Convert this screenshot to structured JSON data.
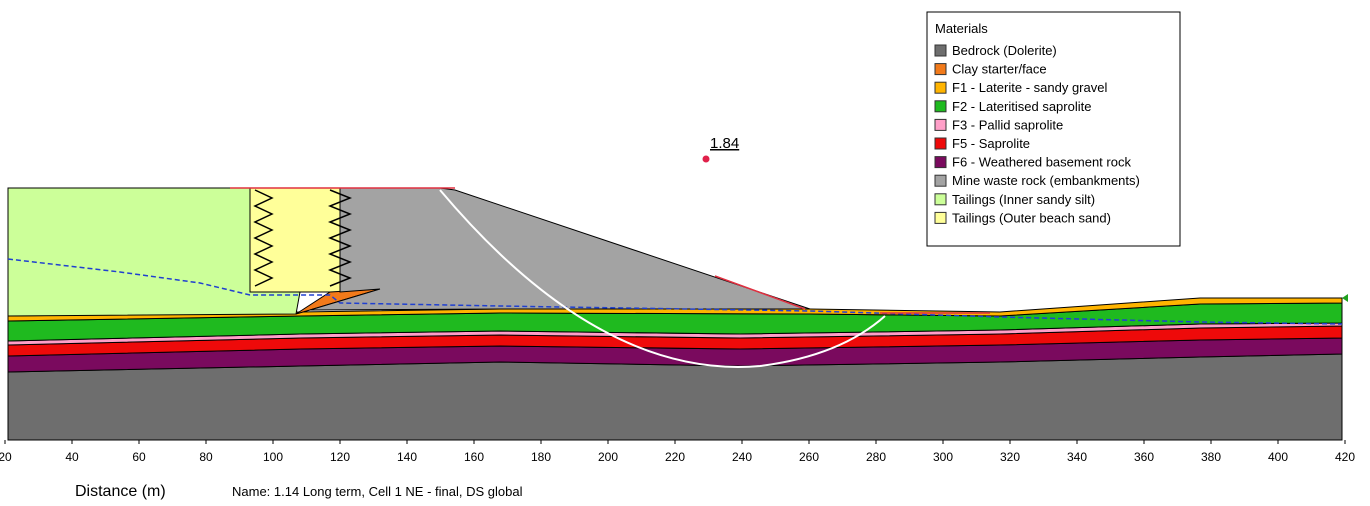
{
  "axis": {
    "label": "Distance (m)",
    "xlim": [
      20,
      420
    ],
    "ticks": [
      20,
      40,
      60,
      80,
      100,
      120,
      140,
      160,
      180,
      200,
      220,
      240,
      260,
      280,
      300,
      320,
      340,
      360,
      380,
      400,
      420
    ]
  },
  "caption": "Name: 1.14 Long term, Cell 1 NE - final, DS global",
  "factor_of_safety": 1.84,
  "legend": {
    "title": "Materials",
    "items": [
      {
        "label": "Bedrock (Dolerite)",
        "color": "#6e6e6e"
      },
      {
        "label": "Clay starter/face",
        "color": "#f27a1a"
      },
      {
        "label": "F1 - Laterite - sandy gravel",
        "color": "#ffb400"
      },
      {
        "label": "F2 - Lateritised saprolite",
        "color": "#1fba1f"
      },
      {
        "label": "F3 - Pallid saprolite",
        "color": "#ff9fc8"
      },
      {
        "label": "F5 - Saprolite",
        "color": "#ee0a0a"
      },
      {
        "label": "F6 - Weathered basement rock",
        "color": "#7a0a5e"
      },
      {
        "label": "Mine waste rock (embankments)",
        "color": "#a3a3a3"
      },
      {
        "label": "Tailings (Inner sandy silt)",
        "color": "#ccff99"
      },
      {
        "label": "Tailings (Outer beach sand)",
        "color": "#ffff99"
      }
    ]
  }
}
